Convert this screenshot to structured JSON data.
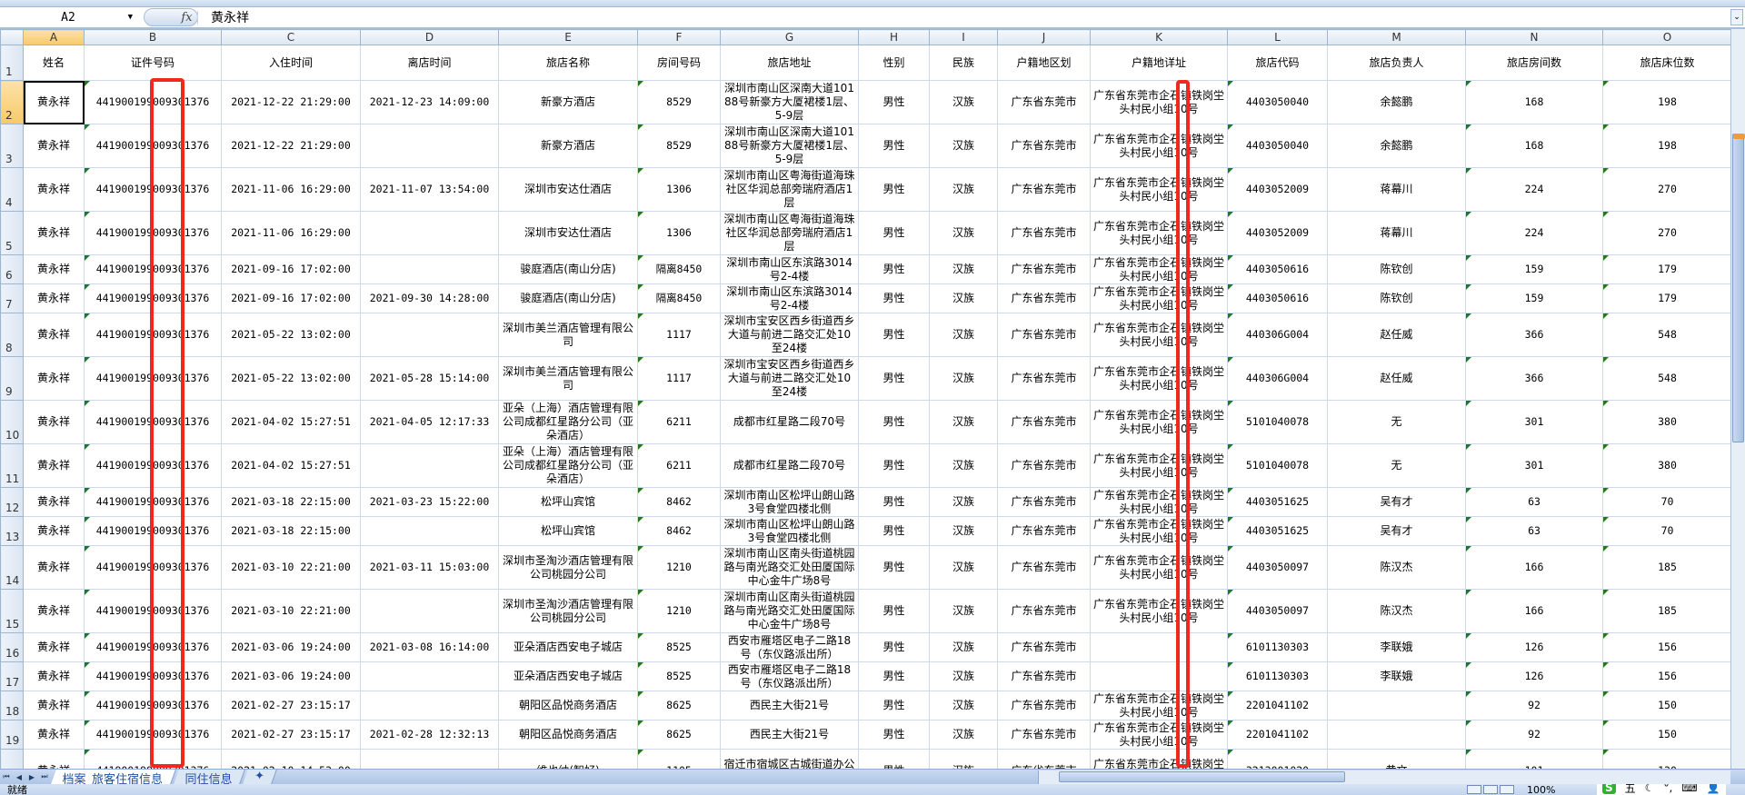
{
  "formula_bar": {
    "name_box": "A2",
    "fx_label": "fx",
    "value": "黄永祥"
  },
  "columns": [
    "A",
    "B",
    "C",
    "D",
    "E",
    "F",
    "G",
    "H",
    "I",
    "J",
    "K",
    "L",
    "M",
    "N",
    "O"
  ],
  "selected": {
    "column": "A",
    "row": 2
  },
  "headers": [
    "姓名",
    "证件号码",
    "入住时间",
    "离店时间",
    "旅店名称",
    "房间号码",
    "旅店地址",
    "性别",
    "民族",
    "户籍地区划",
    "户籍地详址",
    "旅店代码",
    "旅店负责人",
    "旅店房间数",
    "旅店床位数"
  ],
  "rows": [
    [
      "黄永祥",
      "441900199009301376",
      "2021-12-22 21:29:00",
      "2021-12-23 14:09:00",
      "新豪方酒店",
      "8529",
      "深圳市南山区深南大道10188号新豪方大厦裙楼1层、5-9层",
      "男性",
      "汉族",
      "广东省东莞市",
      "广东省东莞市企石镇铁岗坣头村民小组10号",
      "4403050040",
      "余懿鹏",
      "168",
      "198"
    ],
    [
      "黄永祥",
      "441900199009301376",
      "2021-12-22 21:29:00",
      "",
      "新豪方酒店",
      "8529",
      "深圳市南山区深南大道10188号新豪方大厦裙楼1层、5-9层",
      "男性",
      "汉族",
      "广东省东莞市",
      "广东省东莞市企石镇铁岗坣头村民小组10号",
      "4403050040",
      "余懿鹏",
      "168",
      "198"
    ],
    [
      "黄永祥",
      "441900199009301376",
      "2021-11-06 16:29:00",
      "2021-11-07 13:54:00",
      "深圳市安达仕酒店",
      "1306",
      "深圳市南山区粤海街道海珠社区华润总部旁瑞府酒店1层",
      "男性",
      "汉族",
      "广东省东莞市",
      "广东省东莞市企石镇铁岗坣头村民小组10号",
      "4403052009",
      "蒋幕川",
      "224",
      "270"
    ],
    [
      "黄永祥",
      "441900199009301376",
      "2021-11-06 16:29:00",
      "",
      "深圳市安达仕酒店",
      "1306",
      "深圳市南山区粤海街道海珠社区华润总部旁瑞府酒店1层",
      "男性",
      "汉族",
      "广东省东莞市",
      "广东省东莞市企石镇铁岗坣头村民小组10号",
      "4403052009",
      "蒋幕川",
      "224",
      "270"
    ],
    [
      "黄永祥",
      "441900199009301376",
      "2021-09-16 17:02:00",
      "",
      "骏庭酒店(南山分店)",
      "隔离8450",
      "深圳市南山区东滨路3014号2-4楼",
      "男性",
      "汉族",
      "广东省东莞市",
      "广东省东莞市企石镇铁岗坣头村民小组10号",
      "4403050616",
      "陈钦创",
      "159",
      "179"
    ],
    [
      "黄永祥",
      "441900199009301376",
      "2021-09-16 17:02:00",
      "2021-09-30 14:28:00",
      "骏庭酒店(南山分店)",
      "隔离8450",
      "深圳市南山区东滨路3014号2-4楼",
      "男性",
      "汉族",
      "广东省东莞市",
      "广东省东莞市企石镇铁岗坣头村民小组10号",
      "4403050616",
      "陈钦创",
      "159",
      "179"
    ],
    [
      "黄永祥",
      "441900199009301376",
      "2021-05-22 13:02:00",
      "",
      "深圳市美兰酒店管理有限公司",
      "1117",
      "深圳市宝安区西乡街道西乡大道与前进二路交汇处10至24楼",
      "男性",
      "汉族",
      "广东省东莞市",
      "广东省东莞市企石镇铁岗坣头村民小组10号",
      "440306G004",
      "赵任威",
      "366",
      "548"
    ],
    [
      "黄永祥",
      "441900199009301376",
      "2021-05-22 13:02:00",
      "2021-05-28 15:14:00",
      "深圳市美兰酒店管理有限公司",
      "1117",
      "深圳市宝安区西乡街道西乡大道与前进二路交汇处10至24楼",
      "男性",
      "汉族",
      "广东省东莞市",
      "广东省东莞市企石镇铁岗坣头村民小组10号",
      "440306G004",
      "赵任威",
      "366",
      "548"
    ],
    [
      "黄永祥",
      "441900199009301376",
      "2021-04-02 15:27:51",
      "2021-04-05 12:17:33",
      "亚朵（上海）酒店管理有限公司成都红星路分公司（亚朵酒店）",
      "6211",
      "成都市红星路二段70号",
      "男性",
      "汉族",
      "广东省东莞市",
      "广东省东莞市企石镇铁岗坣头村民小组10号",
      "5101040078",
      "无",
      "301",
      "380"
    ],
    [
      "黄永祥",
      "441900199009301376",
      "2021-04-02 15:27:51",
      "",
      "亚朵（上海）酒店管理有限公司成都红星路分公司（亚朵酒店）",
      "6211",
      "成都市红星路二段70号",
      "男性",
      "汉族",
      "广东省东莞市",
      "广东省东莞市企石镇铁岗坣头村民小组10号",
      "5101040078",
      "无",
      "301",
      "380"
    ],
    [
      "黄永祥",
      "441900199009301376",
      "2021-03-18 22:15:00",
      "2021-03-23 15:22:00",
      "松坪山宾馆",
      "8462",
      "深圳市南山区松坪山朗山路3号食堂四楼北侧",
      "男性",
      "汉族",
      "广东省东莞市",
      "广东省东莞市企石镇铁岗坣头村民小组10号",
      "4403051625",
      "吴有才",
      "63",
      "70"
    ],
    [
      "黄永祥",
      "441900199009301376",
      "2021-03-18 22:15:00",
      "",
      "松坪山宾馆",
      "8462",
      "深圳市南山区松坪山朗山路3号食堂四楼北侧",
      "男性",
      "汉族",
      "广东省东莞市",
      "广东省东莞市企石镇铁岗坣头村民小组10号",
      "4403051625",
      "吴有才",
      "63",
      "70"
    ],
    [
      "黄永祥",
      "441900199009301376",
      "2021-03-10 22:21:00",
      "2021-03-11 15:03:00",
      "深圳市圣淘沙酒店管理有限公司桃园分公司",
      "1210",
      "深圳市南山区南头街道桃园路与南光路交汇处田厦国际中心金牛广场8号",
      "男性",
      "汉族",
      "广东省东莞市",
      "广东省东莞市企石镇铁岗坣头村民小组10号",
      "4403050097",
      "陈汉杰",
      "166",
      "185"
    ],
    [
      "黄永祥",
      "441900199009301376",
      "2021-03-10 22:21:00",
      "",
      "深圳市圣淘沙酒店管理有限公司桃园分公司",
      "1210",
      "深圳市南山区南头街道桃园路与南光路交汇处田厦国际中心金牛广场8号",
      "男性",
      "汉族",
      "广东省东莞市",
      "广东省东莞市企石镇铁岗坣头村民小组10号",
      "4403050097",
      "陈汉杰",
      "166",
      "185"
    ],
    [
      "黄永祥",
      "441900199009301376",
      "2021-03-06 19:24:00",
      "2021-03-08 16:14:00",
      "亚朵酒店西安电子城店",
      "8525",
      "西安市雁塔区电子二路18号（东仪路派出所）",
      "男性",
      "汉族",
      "广东省东莞市",
      "",
      "6101130303",
      "李联娥",
      "126",
      "156"
    ],
    [
      "黄永祥",
      "441900199009301376",
      "2021-03-06 19:24:00",
      "",
      "亚朵酒店西安电子城店",
      "8525",
      "西安市雁塔区电子二路18号（东仪路派出所）",
      "男性",
      "汉族",
      "广东省东莞市",
      "",
      "6101130303",
      "李联娥",
      "126",
      "156"
    ],
    [
      "黄永祥",
      "441900199009301376",
      "2021-02-27 23:15:17",
      "",
      "朝阳区品悦商务酒店",
      "8625",
      "西民主大街21号",
      "男性",
      "汉族",
      "广东省东莞市",
      "广东省东莞市企石镇铁岗坣头村民小组10号",
      "2201041102",
      "",
      "92",
      "150"
    ],
    [
      "黄永祥",
      "441900199009301376",
      "2021-02-27 23:15:17",
      "2021-02-28 12:32:13",
      "朝阳区品悦商务酒店",
      "8625",
      "西民主大街21号",
      "男性",
      "汉族",
      "广东省东莞市",
      "广东省东莞市企石镇铁岗坣头村民小组10号",
      "2201041102",
      "",
      "92",
      "150"
    ],
    [
      "黄永祥",
      "441900199009301376",
      "2021-02-10 14:53:00",
      "",
      "维也纳(智好)",
      "1105",
      "宿迁市宿城区古城街道办公大楼（地上北一层、地",
      "男性",
      "汉族",
      "广东省东莞市",
      "广东省东莞市企石镇铁岗坣头村民小组10号",
      "3213001020",
      "黄文",
      "101",
      "130"
    ]
  ],
  "sheet_tabs": [
    "档案_旅客住宿信息",
    "同住信息"
  ],
  "active_tab": 0,
  "status": {
    "ready": "就绪",
    "zoom": "100%",
    "ime": "五"
  },
  "colors": {
    "annotation_red": "#f0281e",
    "selection_highlight": "#f8c96a",
    "text_number_marker": "#1e7a1e"
  }
}
